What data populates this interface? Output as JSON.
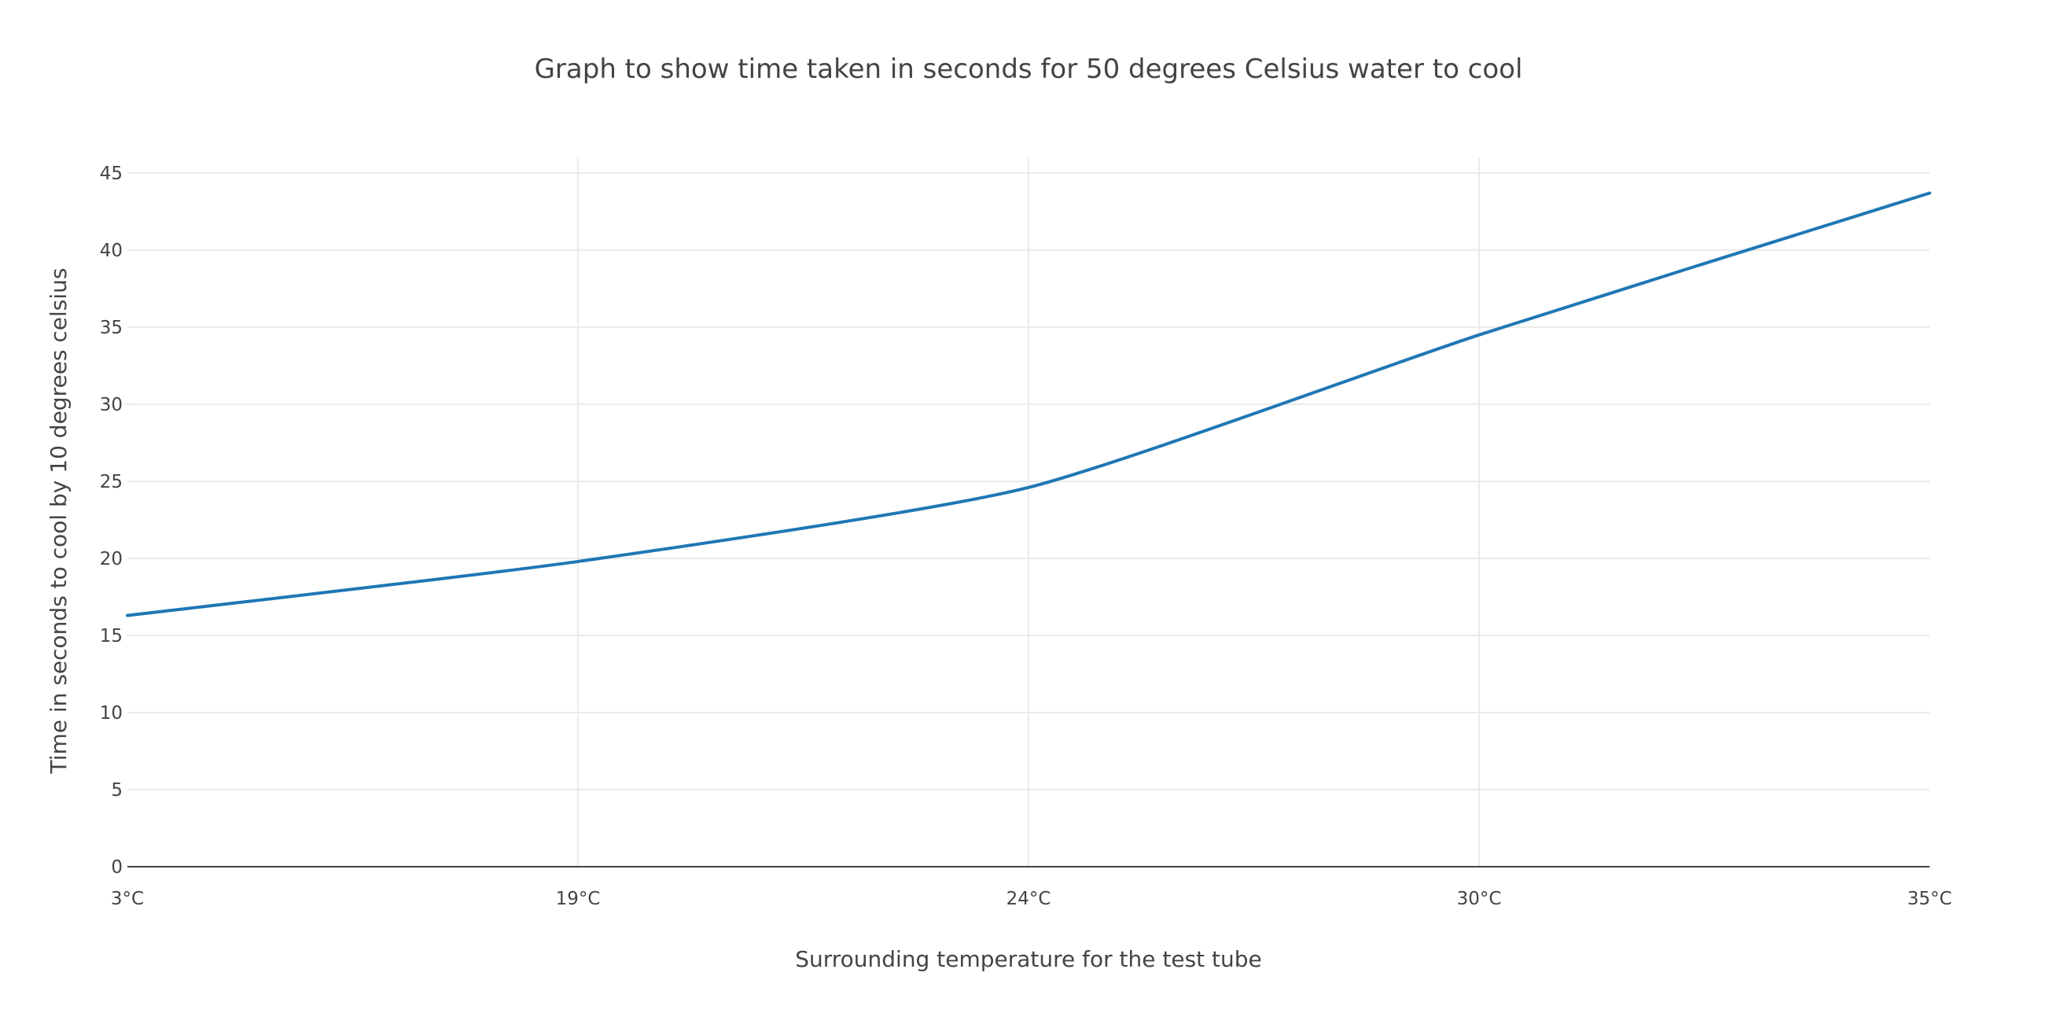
{
  "chart_data": {
    "type": "line",
    "title": "Graph to show time taken in seconds for 50 degrees Celsius water to cool",
    "xlabel": "Surrounding temperature for the test tube",
    "ylabel": "Time in seconds to cool by 10 degrees celsius",
    "categories": [
      "3°C",
      "19°C",
      "24°C",
      "30°C",
      "35°C"
    ],
    "series": [
      {
        "values": [
          16.3,
          19.8,
          24.6,
          34.5,
          43.7
        ],
        "color": "#1f77b4"
      }
    ],
    "ylim": [
      0,
      45
    ],
    "yticks": [
      0,
      5,
      10,
      15,
      20,
      25,
      30,
      35,
      40,
      45
    ],
    "grid": true,
    "legend": "none",
    "line_shape": "smooth"
  }
}
